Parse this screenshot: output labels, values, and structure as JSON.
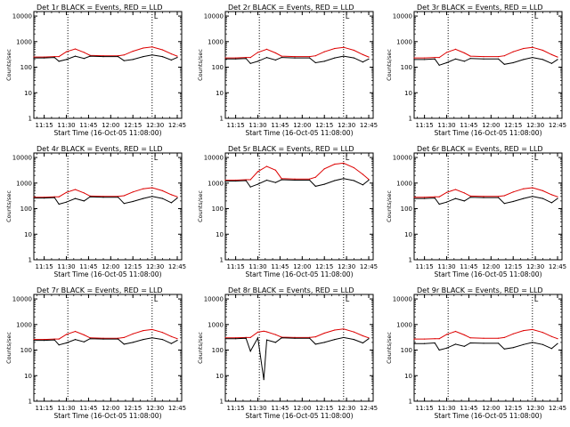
{
  "colors": {
    "events": "#000000",
    "lld": "#dd0000",
    "frame": "#000000",
    "background": "#ffffff"
  },
  "layout_grid": {
    "rows": 3,
    "cols": 3
  },
  "time_axis": {
    "ticks": [
      "11:15",
      "11:30",
      "11:45",
      "12:00",
      "12:15",
      "12:30",
      "12:45"
    ],
    "label": "Start Time (16-Oct-05 11:08:00)",
    "marker_lines": [
      "11:31",
      "12:28"
    ],
    "marker_label": "L"
  },
  "y_axis": {
    "label": "Counts/sec",
    "ticks": [
      "1",
      "10",
      "100",
      "1000",
      "10000"
    ],
    "scale": "log"
  },
  "chart_data": [
    {
      "type": "line",
      "title": "Det 1r BLACK = Events, RED = LLD",
      "x": [
        "11:08",
        "11:15",
        "11:22",
        "11:25",
        "11:30",
        "11:36",
        "11:42",
        "11:46",
        "11:55",
        "12:05",
        "12:09",
        "12:15",
        "12:22",
        "12:28",
        "12:35",
        "12:41",
        "12:45"
      ],
      "series": [
        {
          "name": "LLD",
          "values": [
            250,
            250,
            260,
            260,
            400,
            520,
            380,
            290,
            280,
            280,
            300,
            420,
            560,
            620,
            480,
            330,
            270
          ]
        },
        {
          "name": "Events",
          "values": [
            230,
            230,
            240,
            170,
            200,
            270,
            220,
            270,
            260,
            260,
            180,
            200,
            260,
            300,
            260,
            190,
            240
          ]
        }
      ],
      "ylim": [
        1,
        15000
      ]
    },
    {
      "type": "line",
      "title": "Det 2r BLACK = Events, RED = LLD",
      "x": [
        "11:08",
        "11:15",
        "11:22",
        "11:25",
        "11:30",
        "11:36",
        "11:42",
        "11:46",
        "11:55",
        "12:05",
        "12:09",
        "12:15",
        "12:22",
        "12:28",
        "12:35",
        "12:41",
        "12:45"
      ],
      "series": [
        {
          "name": "LLD",
          "values": [
            230,
            230,
            240,
            240,
            380,
            500,
            360,
            270,
            260,
            260,
            280,
            400,
            540,
            600,
            460,
            310,
            250
          ]
        },
        {
          "name": "Events",
          "values": [
            210,
            210,
            220,
            140,
            170,
            240,
            190,
            240,
            230,
            230,
            150,
            170,
            230,
            270,
            230,
            160,
            210
          ]
        }
      ],
      "ylim": [
        1,
        15000
      ]
    },
    {
      "type": "line",
      "title": "Det 3r BLACK = Events, RED = LLD",
      "x": [
        "11:08",
        "11:15",
        "11:22",
        "11:25",
        "11:30",
        "11:36",
        "11:42",
        "11:46",
        "11:55",
        "12:05",
        "12:09",
        "12:15",
        "12:22",
        "12:28",
        "12:35",
        "12:41",
        "12:45"
      ],
      "series": [
        {
          "name": "LLD",
          "values": [
            230,
            230,
            240,
            240,
            380,
            500,
            360,
            270,
            260,
            260,
            280,
            400,
            540,
            600,
            460,
            310,
            250
          ]
        },
        {
          "name": "Events",
          "values": [
            200,
            200,
            210,
            120,
            150,
            210,
            170,
            220,
            210,
            210,
            130,
            150,
            200,
            240,
            200,
            140,
            200
          ]
        }
      ],
      "ylim": [
        1,
        15000
      ]
    },
    {
      "type": "line",
      "title": "Det 4r BLACK = Events, RED = LLD",
      "x": [
        "11:08",
        "11:15",
        "11:22",
        "11:25",
        "11:30",
        "11:36",
        "11:42",
        "11:46",
        "11:55",
        "12:05",
        "12:09",
        "12:15",
        "12:22",
        "12:28",
        "12:35",
        "12:41",
        "12:45"
      ],
      "series": [
        {
          "name": "LLD",
          "values": [
            280,
            280,
            290,
            290,
            430,
            560,
            410,
            310,
            300,
            300,
            320,
            450,
            600,
            660,
            500,
            350,
            290
          ]
        },
        {
          "name": "Events",
          "values": [
            260,
            260,
            270,
            150,
            180,
            250,
            200,
            290,
            280,
            280,
            160,
            190,
            250,
            300,
            250,
            170,
            260
          ]
        }
      ],
      "ylim": [
        1,
        15000
      ]
    },
    {
      "type": "line",
      "title": "Det 5r BLACK = Events, RED = LLD",
      "x": [
        "11:08",
        "11:15",
        "11:22",
        "11:25",
        "11:30",
        "11:36",
        "11:42",
        "11:46",
        "11:55",
        "12:05",
        "12:09",
        "12:15",
        "12:22",
        "12:28",
        "12:35",
        "12:41",
        "12:45"
      ],
      "series": [
        {
          "name": "LLD",
          "values": [
            1300,
            1300,
            1350,
            1350,
            2800,
            4500,
            3200,
            1500,
            1450,
            1450,
            1700,
            3600,
            5500,
            6000,
            4000,
            2200,
            1400
          ]
        },
        {
          "name": "Events",
          "values": [
            1200,
            1200,
            1250,
            700,
            900,
            1300,
            1050,
            1350,
            1300,
            1300,
            750,
            900,
            1250,
            1500,
            1250,
            850,
            1300
          ]
        }
      ],
      "ylim": [
        1,
        15000
      ]
    },
    {
      "type": "line",
      "title": "Det 6r BLACK = Events, RED = LLD",
      "x": [
        "11:08",
        "11:15",
        "11:22",
        "11:25",
        "11:30",
        "11:36",
        "11:42",
        "11:46",
        "11:55",
        "12:05",
        "12:09",
        "12:15",
        "12:22",
        "12:28",
        "12:35",
        "12:41",
        "12:45"
      ],
      "series": [
        {
          "name": "LLD",
          "values": [
            280,
            280,
            290,
            290,
            430,
            560,
            410,
            310,
            300,
            300,
            320,
            450,
            600,
            660,
            500,
            350,
            290
          ]
        },
        {
          "name": "Events",
          "values": [
            250,
            250,
            260,
            150,
            180,
            250,
            200,
            280,
            270,
            270,
            160,
            190,
            250,
            300,
            250,
            170,
            250
          ]
        }
      ],
      "ylim": [
        1,
        15000
      ]
    },
    {
      "type": "line",
      "title": "Det 7r BLACK = Events, RED = LLD",
      "x": [
        "11:08",
        "11:15",
        "11:22",
        "11:25",
        "11:30",
        "11:36",
        "11:42",
        "11:46",
        "11:55",
        "12:05",
        "12:09",
        "12:15",
        "12:22",
        "12:28",
        "12:35",
        "12:41",
        "12:45"
      ],
      "series": [
        {
          "name": "LLD",
          "values": [
            260,
            260,
            270,
            270,
            410,
            540,
            390,
            300,
            290,
            290,
            310,
            430,
            580,
            640,
            490,
            340,
            280
          ]
        },
        {
          "name": "Events",
          "values": [
            240,
            240,
            250,
            160,
            190,
            260,
            210,
            280,
            270,
            270,
            170,
            200,
            260,
            300,
            260,
            180,
            240
          ]
        }
      ],
      "ylim": [
        1,
        15000
      ]
    },
    {
      "type": "line",
      "title": "Det 8r BLACK = Events, RED = LLD",
      "x": [
        "11:08",
        "11:15",
        "11:22",
        "11:25",
        "11:30",
        "11:34",
        "11:36",
        "11:42",
        "11:46",
        "11:55",
        "12:05",
        "12:09",
        "12:15",
        "12:22",
        "12:28",
        "12:35",
        "12:41",
        "12:45"
      ],
      "series": [
        {
          "name": "LLD",
          "values": [
            300,
            300,
            310,
            310,
            500,
            550,
            520,
            400,
            320,
            310,
            310,
            330,
            460,
            610,
            670,
            510,
            360,
            300
          ]
        },
        {
          "name": "Events",
          "values": [
            280,
            280,
            290,
            90,
            300,
            7,
            250,
            200,
            300,
            290,
            290,
            170,
            200,
            260,
            310,
            260,
            190,
            280
          ]
        }
      ],
      "ylim": [
        1,
        15000
      ]
    },
    {
      "type": "line",
      "title": "Det 9r BLACK = Events, RED = LLD",
      "x": [
        "11:08",
        "11:15",
        "11:22",
        "11:25",
        "11:30",
        "11:36",
        "11:42",
        "11:46",
        "11:55",
        "12:05",
        "12:09",
        "12:15",
        "12:22",
        "12:28",
        "12:35",
        "12:41",
        "12:45"
      ],
      "series": [
        {
          "name": "LLD",
          "values": [
            270,
            270,
            280,
            280,
            410,
            540,
            390,
            300,
            290,
            290,
            310,
            430,
            580,
            640,
            490,
            340,
            280
          ]
        },
        {
          "name": "Events",
          "values": [
            180,
            180,
            190,
            100,
            120,
            170,
            140,
            190,
            185,
            185,
            110,
            125,
            165,
            200,
            165,
            115,
            180
          ]
        }
      ],
      "ylim": [
        1,
        15000
      ]
    }
  ]
}
